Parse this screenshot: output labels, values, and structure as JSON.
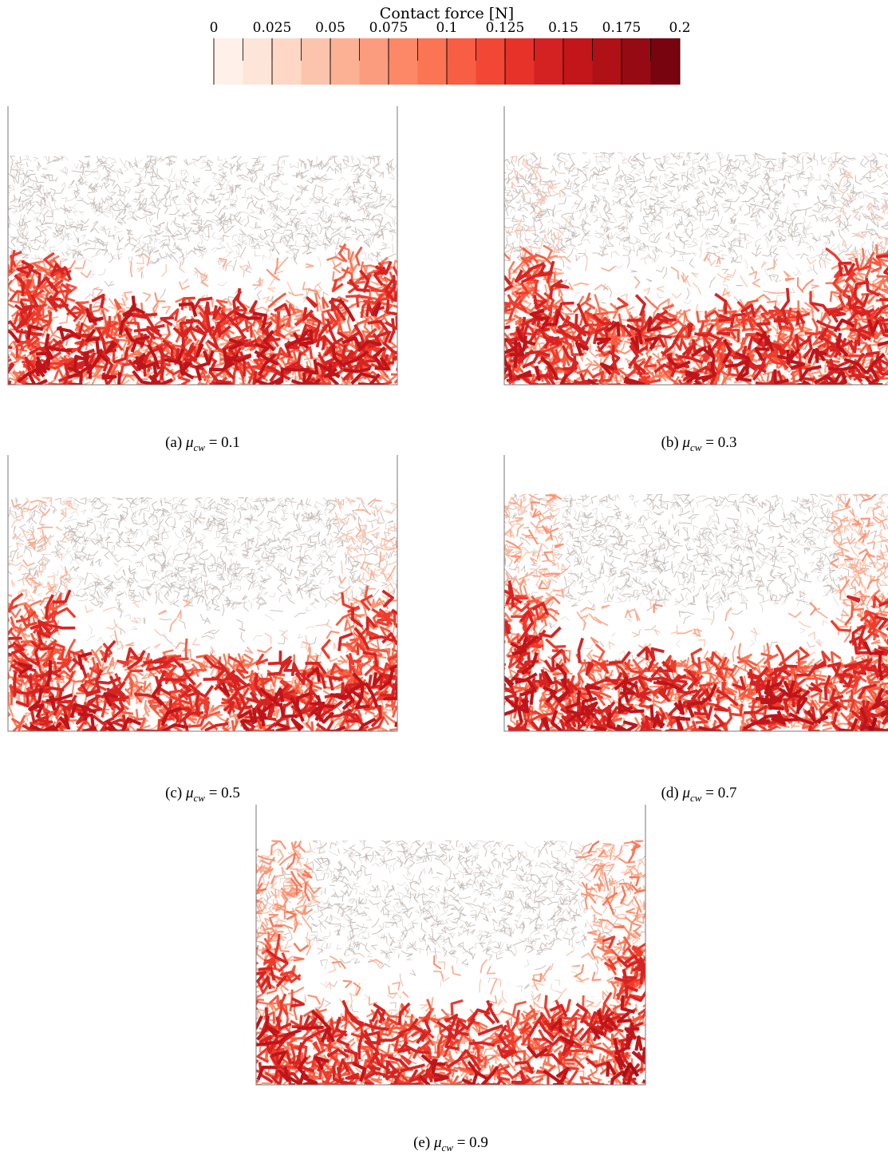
{
  "colorbar": {
    "title": "Contact force [N]",
    "range": [
      0,
      0.2
    ],
    "ticks": [
      0,
      0.025,
      0.05,
      0.075,
      0.1,
      0.125,
      0.15,
      0.175,
      0.2
    ]
  },
  "panels": [
    {
      "tag": "(a)",
      "symbol": "μ",
      "subscript": "cw",
      "relation": "=",
      "value": 0.1
    },
    {
      "tag": "(b)",
      "symbol": "μ",
      "subscript": "cw",
      "relation": "=",
      "value": 0.3
    },
    {
      "tag": "(c)",
      "symbol": "μ",
      "subscript": "cw",
      "relation": "=",
      "value": 0.5
    },
    {
      "tag": "(d)",
      "symbol": "μ",
      "subscript": "cw",
      "relation": "=",
      "value": 0.7
    },
    {
      "tag": "(e)",
      "symbol": "μ",
      "subscript": "cw",
      "relation": "=",
      "value": 0.9
    }
  ]
}
